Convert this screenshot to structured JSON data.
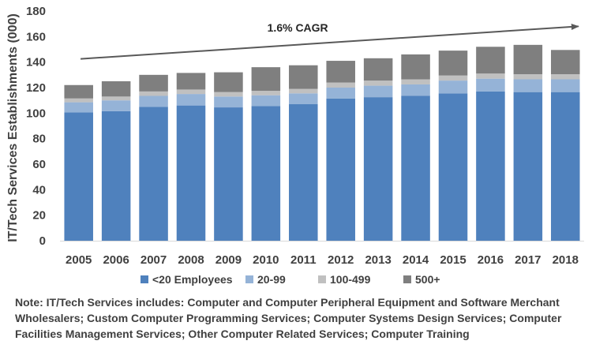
{
  "chart_data": {
    "type": "bar",
    "stacked": true,
    "title": "",
    "xlabel": "",
    "ylabel": "IT/Tech Services Establishments (000)",
    "ylim": [
      0,
      180
    ],
    "yticks": [
      0,
      20,
      40,
      60,
      80,
      100,
      120,
      140,
      160,
      180
    ],
    "grid": false,
    "legend_position": "bottom",
    "categories": [
      "2005",
      "2006",
      "2007",
      "2008",
      "2009",
      "2010",
      "2011",
      "2012",
      "2013",
      "2014",
      "2015",
      "2016",
      "2017",
      "2018"
    ],
    "series": [
      {
        "name": "<20 Employees",
        "color": "#4f81bd",
        "values": [
          100.5,
          101.5,
          105,
          106,
          104.5,
          105.5,
          107,
          111.5,
          112.5,
          113.5,
          115.5,
          117,
          116.5,
          116.5
        ]
      },
      {
        "name": "20-99",
        "color": "#95b3d7",
        "values": [
          8,
          8.5,
          8.5,
          9,
          8.5,
          8.5,
          8.5,
          8.5,
          9,
          9,
          10,
          10,
          10,
          10
        ]
      },
      {
        "name": "100-499",
        "color": "#c0c0c0",
        "values": [
          3,
          3,
          3.5,
          3.5,
          3.5,
          3.5,
          3.5,
          4,
          4,
          4,
          4,
          4,
          4,
          4
        ]
      },
      {
        "name": "500+",
        "color": "#7f7f7f",
        "values": [
          10.5,
          12,
          13,
          13,
          15.5,
          18.5,
          18.5,
          17,
          17.5,
          19.5,
          19.5,
          21,
          23,
          19
        ]
      }
    ],
    "annotation": {
      "text": "1.6% CAGR",
      "arrow_from_value": 142.5,
      "arrow_to_value": 168
    }
  },
  "note_text": "Note: IT/Tech Services includes: Computer and Computer Peripheral Equipment and Software Merchant Wholesalers; Custom Computer Programming Services; Computer Systems Design Services; Computer Facilities Management Services; Other Computer Related Services; Computer Training"
}
